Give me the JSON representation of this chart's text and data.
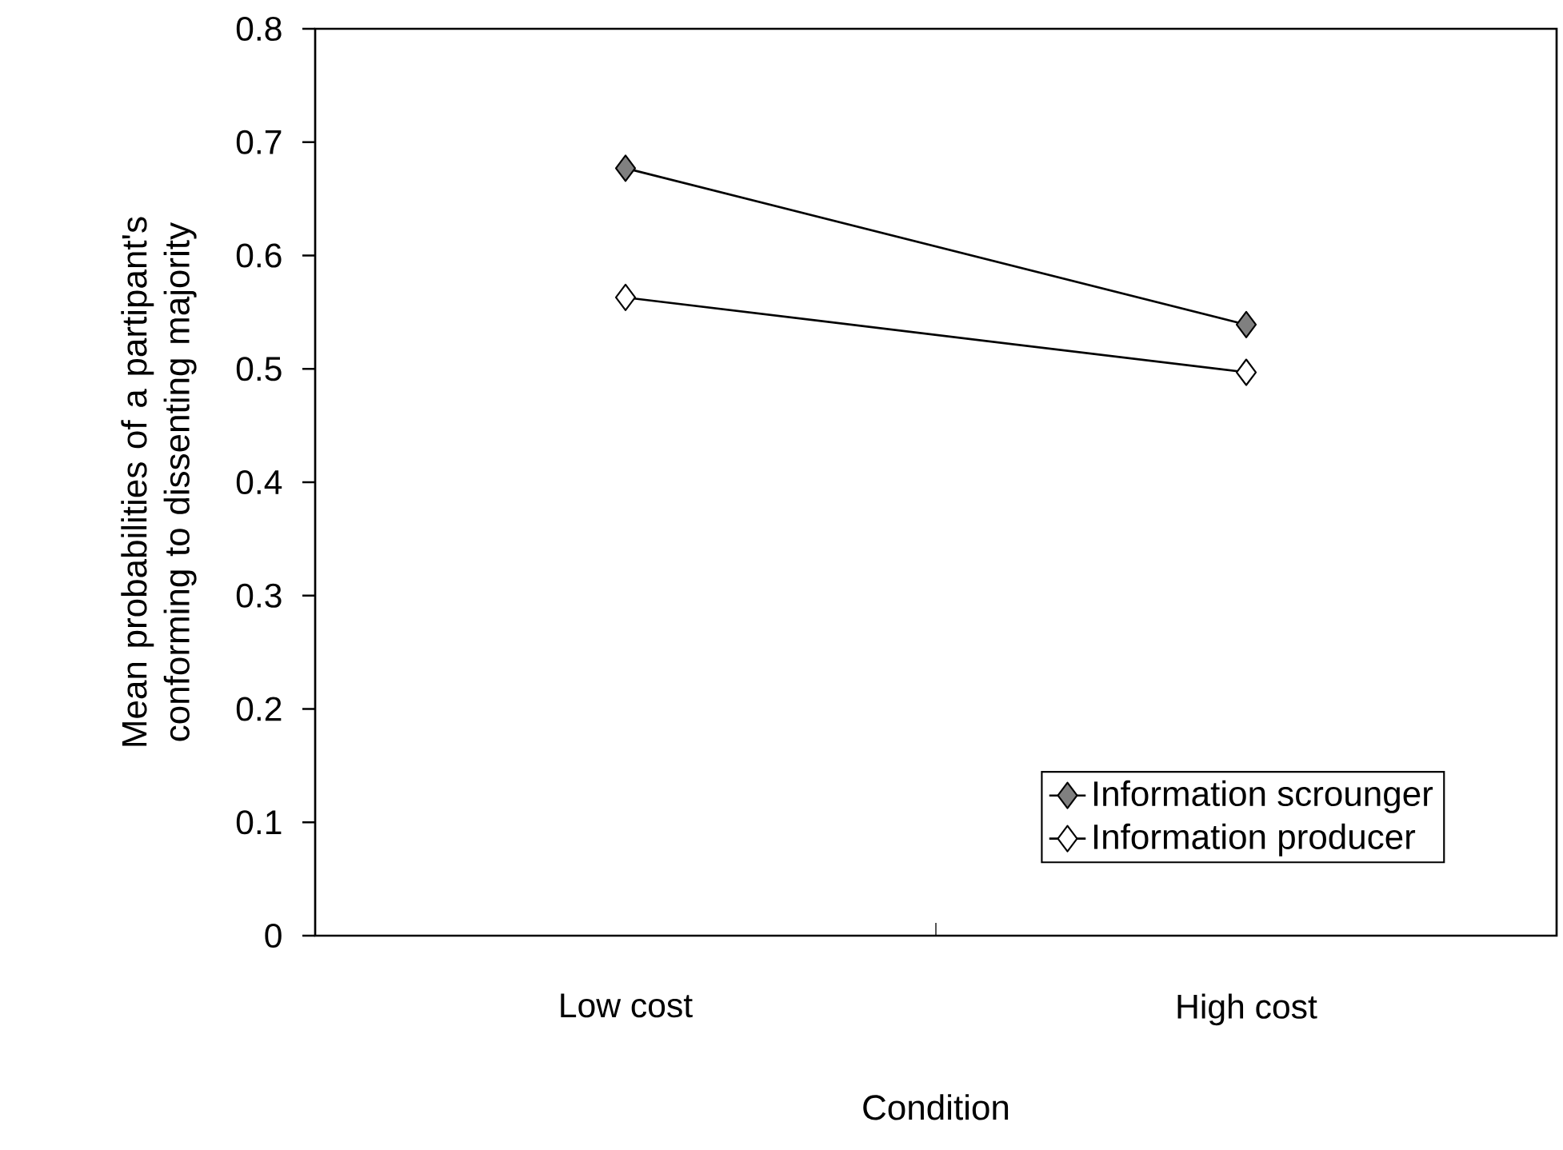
{
  "chart_data": {
    "type": "line",
    "xlabel": "Condition",
    "ylabel": "Mean probabilities of a partipant's conforming to dissenting majority",
    "categories": [
      "Low cost",
      "High cost"
    ],
    "series": [
      {
        "name": "Information scrounger",
        "color": "#000000",
        "values": [
          0.677,
          0.539
        ]
      },
      {
        "name": "Information producer",
        "color": "#000000",
        "values": [
          0.563,
          0.497
        ]
      }
    ],
    "ylim": [
      0,
      0.8
    ],
    "yticks": [
      0,
      0.1,
      0.2,
      0.3,
      0.4,
      0.5,
      0.6,
      0.7,
      0.8
    ],
    "marker": "diamond",
    "line_style": "solid",
    "legend": "bottom right",
    "grid": false
  }
}
